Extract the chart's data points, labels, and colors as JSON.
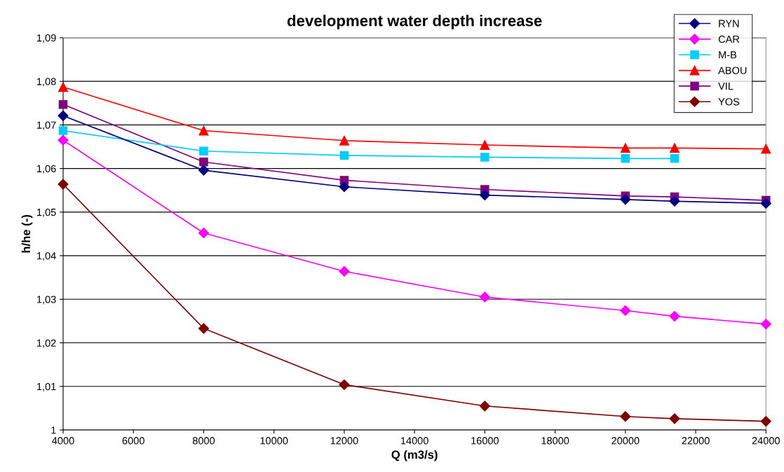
{
  "chart_data": {
    "type": "line",
    "title": "development water depth increase",
    "xlabel": "Q (m3/s)",
    "ylabel": "h/he (-)",
    "x": [
      4000,
      8000,
      12000,
      16000,
      20000,
      21400,
      24000
    ],
    "series": [
      {
        "name": "RYN",
        "color": "#000080",
        "marker": "diamond",
        "values": [
          1.0721,
          1.0596,
          1.0558,
          1.0539,
          1.0529,
          1.0525,
          1.052
        ]
      },
      {
        "name": "CAR",
        "color": "#ff00ff",
        "marker": "diamond",
        "values": [
          1.0665,
          1.0452,
          1.0364,
          1.0305,
          1.0274,
          1.0261,
          1.0243
        ]
      },
      {
        "name": "M-B",
        "color": "#00ccff",
        "marker": "square",
        "values": [
          1.0687,
          1.064,
          1.063,
          1.0626,
          1.0623,
          1.0623,
          null
        ]
      },
      {
        "name": "ABOU",
        "color": "#ff0000",
        "marker": "triangle",
        "values": [
          1.0787,
          1.0687,
          1.0664,
          1.0654,
          1.0647,
          1.0647,
          1.0645
        ]
      },
      {
        "name": "VIL",
        "color": "#800080",
        "marker": "square",
        "values": [
          1.0747,
          1.0615,
          1.0573,
          1.0552,
          1.0537,
          1.0535,
          1.0527
        ]
      },
      {
        "name": "YOS",
        "color": "#800000",
        "marker": "diamond",
        "values": [
          1.0564,
          1.0233,
          1.0104,
          1.0055,
          1.0031,
          1.0026,
          1.002
        ]
      }
    ],
    "xlim": [
      4000,
      24000
    ],
    "xticks": [
      4000,
      6000,
      8000,
      10000,
      12000,
      14000,
      16000,
      18000,
      20000,
      22000,
      24000
    ],
    "ylim": [
      1,
      1.09
    ],
    "yticks": [
      1,
      {
        "value": 1.01,
        "label": "1,01"
      },
      {
        "value": 1.02,
        "label": "1,02"
      },
      {
        "value": 1.03,
        "label": "1,03"
      },
      {
        "value": 1.04,
        "label": "1,04"
      },
      {
        "value": 1.05,
        "label": "1,05"
      },
      {
        "value": 1.06,
        "label": "1,06"
      },
      {
        "value": 1.07,
        "label": "1,07"
      },
      {
        "value": 1.08,
        "label": "1,08"
      },
      {
        "value": 1.09,
        "label": "1,09"
      }
    ],
    "grid": "y",
    "legend": "top right",
    "line_style": "solid"
  }
}
